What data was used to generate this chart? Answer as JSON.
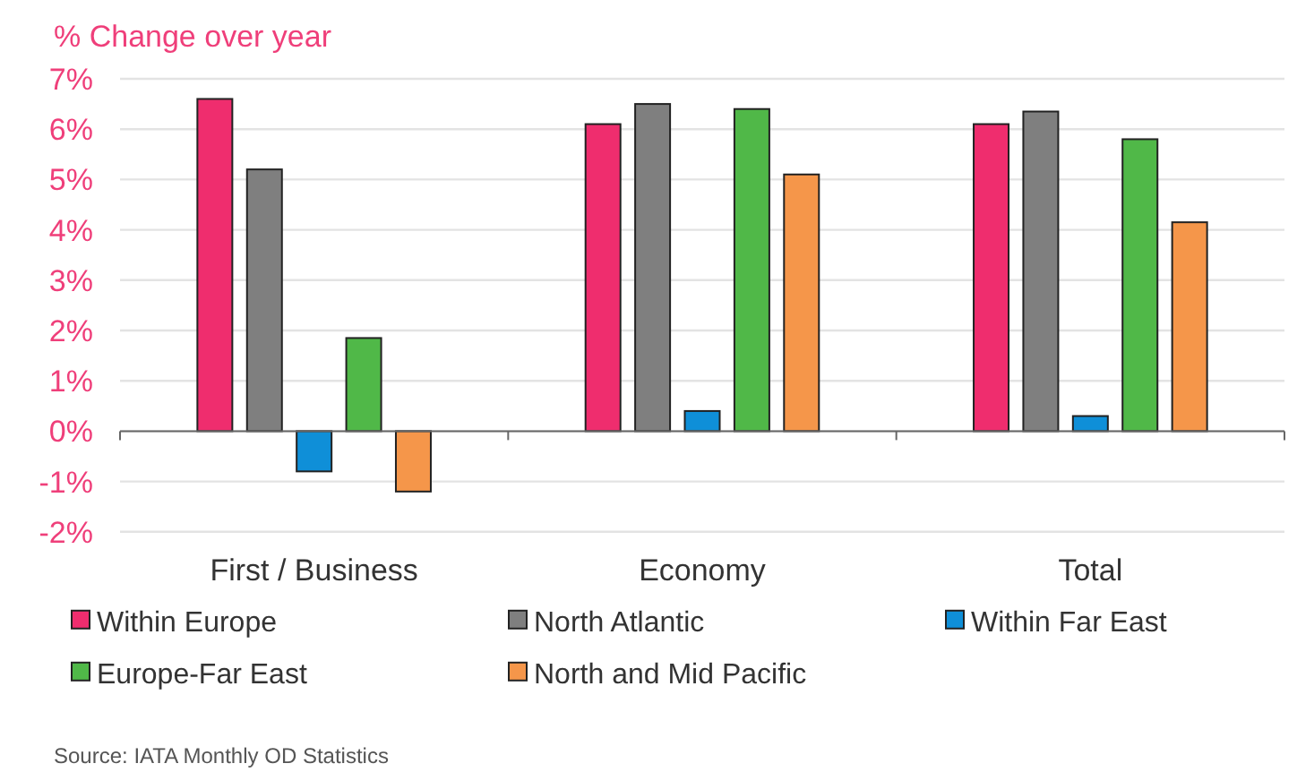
{
  "chart_data": {
    "type": "bar",
    "ylabel": "% Change over year",
    "categories": [
      "First / Business",
      "Economy",
      "Total"
    ],
    "series": [
      {
        "name": "Within Europe",
        "color": "#ef2d6e",
        "values": [
          6.6,
          6.1,
          6.1
        ]
      },
      {
        "name": "North Atlantic",
        "color": "#7f7f7f",
        "values": [
          5.2,
          6.5,
          6.35
        ]
      },
      {
        "name": "Within Far East",
        "color": "#0f8fd8",
        "values": [
          -0.8,
          0.4,
          0.3
        ]
      },
      {
        "name": "Europe-Far East",
        "color": "#50b848",
        "values": [
          1.85,
          6.4,
          5.8
        ]
      },
      {
        "name": "North and Mid Pacific",
        "color": "#f5964a",
        "values": [
          -1.2,
          5.1,
          4.15
        ]
      }
    ],
    "ylim": [
      -2,
      7
    ],
    "yticks": [
      {
        "value": -2,
        "label": "-2%"
      },
      {
        "value": -1,
        "label": "-1%"
      },
      {
        "value": 0,
        "label": "0%"
      },
      {
        "value": 1,
        "label": "1%"
      },
      {
        "value": 2,
        "label": "2%"
      },
      {
        "value": 3,
        "label": "3%"
      },
      {
        "value": 4,
        "label": "4%"
      },
      {
        "value": 5,
        "label": "5%"
      },
      {
        "value": 6,
        "label": "6%"
      },
      {
        "value": 7,
        "label": "7%"
      }
    ],
    "grid": "y",
    "legend": "bottom",
    "annotations": [
      "Source: IATA Monthly OD Statistics"
    ]
  }
}
